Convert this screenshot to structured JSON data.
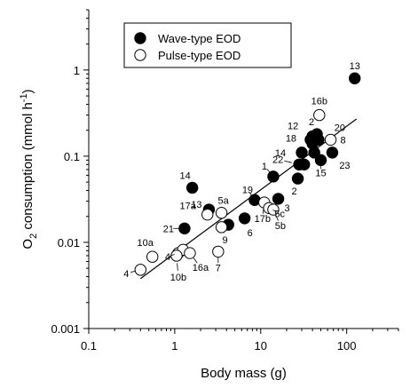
{
  "chart_data": {
    "type": "scatter",
    "xlabel": "Body mass (g)",
    "ylabel_parts": [
      "O",
      "2",
      " consumption (mmol h",
      "-1",
      ")"
    ],
    "x_scale": "log",
    "y_scale": "log",
    "xlim": [
      0.1,
      400
    ],
    "ylim": [
      0.001,
      5
    ],
    "x_ticks": [
      {
        "value": 0.1,
        "label": "0.1"
      },
      {
        "value": 1,
        "label": "1"
      },
      {
        "value": 10,
        "label": "10"
      },
      {
        "value": 100,
        "label": "100"
      }
    ],
    "y_ticks": [
      {
        "value": 0.001,
        "label": "0.001"
      },
      {
        "value": 0.01,
        "label": "0.01"
      },
      {
        "value": 0.1,
        "label": "0.1"
      },
      {
        "value": 1,
        "label": "1"
      }
    ],
    "legend": {
      "position": "top-left",
      "entries": [
        {
          "label": "Wave-type EOD",
          "marker": "filled-circle"
        },
        {
          "label": "Pulse-type EOD",
          "marker": "open-circle"
        }
      ]
    },
    "series": [
      {
        "name": "Wave-type EOD",
        "marker": "filled-circle",
        "points": [
          {
            "x": 124,
            "y": 0.8,
            "label": "13"
          },
          {
            "x": 45,
            "y": 0.18,
            "label": "2"
          },
          {
            "x": 40,
            "y": 0.17,
            "label": "12"
          },
          {
            "x": 38,
            "y": 0.155,
            "label": "18"
          },
          {
            "x": 40,
            "y": 0.14,
            "label": ""
          },
          {
            "x": 47,
            "y": 0.155,
            "label": "20"
          },
          {
            "x": 30,
            "y": 0.11,
            "label": "14"
          },
          {
            "x": 42,
            "y": 0.11,
            "label": ""
          },
          {
            "x": 28,
            "y": 0.08,
            "label": "22"
          },
          {
            "x": 32,
            "y": 0.08,
            "label": ""
          },
          {
            "x": 50,
            "y": 0.09,
            "label": "15"
          },
          {
            "x": 68,
            "y": 0.11,
            "label": "23"
          },
          {
            "x": 27,
            "y": 0.055,
            "label": "2"
          },
          {
            "x": 14,
            "y": 0.058,
            "label": "1"
          },
          {
            "x": 16,
            "y": 0.032,
            "label": "3"
          },
          {
            "x": 8.5,
            "y": 0.031,
            "label": "19"
          },
          {
            "x": 1.6,
            "y": 0.043,
            "label": "14"
          },
          {
            "x": 2.5,
            "y": 0.024,
            "label": "13"
          },
          {
            "x": 6.5,
            "y": 0.019,
            "label": "6"
          },
          {
            "x": 4.2,
            "y": 0.016,
            "label": ""
          },
          {
            "x": 1.3,
            "y": 0.0145,
            "label": "21"
          }
        ]
      },
      {
        "name": "Pulse-type EOD",
        "marker": "open-circle",
        "points": [
          {
            "x": 48,
            "y": 0.3,
            "label": "16b"
          },
          {
            "x": 65,
            "y": 0.155,
            "label": "8"
          },
          {
            "x": 11,
            "y": 0.029,
            "label": "17b"
          },
          {
            "x": 12.5,
            "y": 0.025,
            "label": "5c"
          },
          {
            "x": 14,
            "y": 0.024,
            "label": "5b"
          },
          {
            "x": 3.5,
            "y": 0.022,
            "label": "5a"
          },
          {
            "x": 2.4,
            "y": 0.021,
            "label": "17a"
          },
          {
            "x": 3.5,
            "y": 0.015,
            "label": "9"
          },
          {
            "x": 1.1,
            "y": 0.0075,
            "label": "4"
          },
          {
            "x": 1.25,
            "y": 0.0082,
            "label": ""
          },
          {
            "x": 1.5,
            "y": 0.0075,
            "label": "16a"
          },
          {
            "x": 1.05,
            "y": 0.007,
            "label": "10b"
          },
          {
            "x": 0.55,
            "y": 0.0068,
            "label": "10a"
          },
          {
            "x": 0.4,
            "y": 0.0048,
            "label": "4"
          },
          {
            "x": 3.2,
            "y": 0.0078,
            "label": "7"
          }
        ]
      }
    ],
    "regression_line": {
      "x": [
        0.4,
        130
      ],
      "y": [
        0.0038,
        0.27
      ]
    }
  }
}
